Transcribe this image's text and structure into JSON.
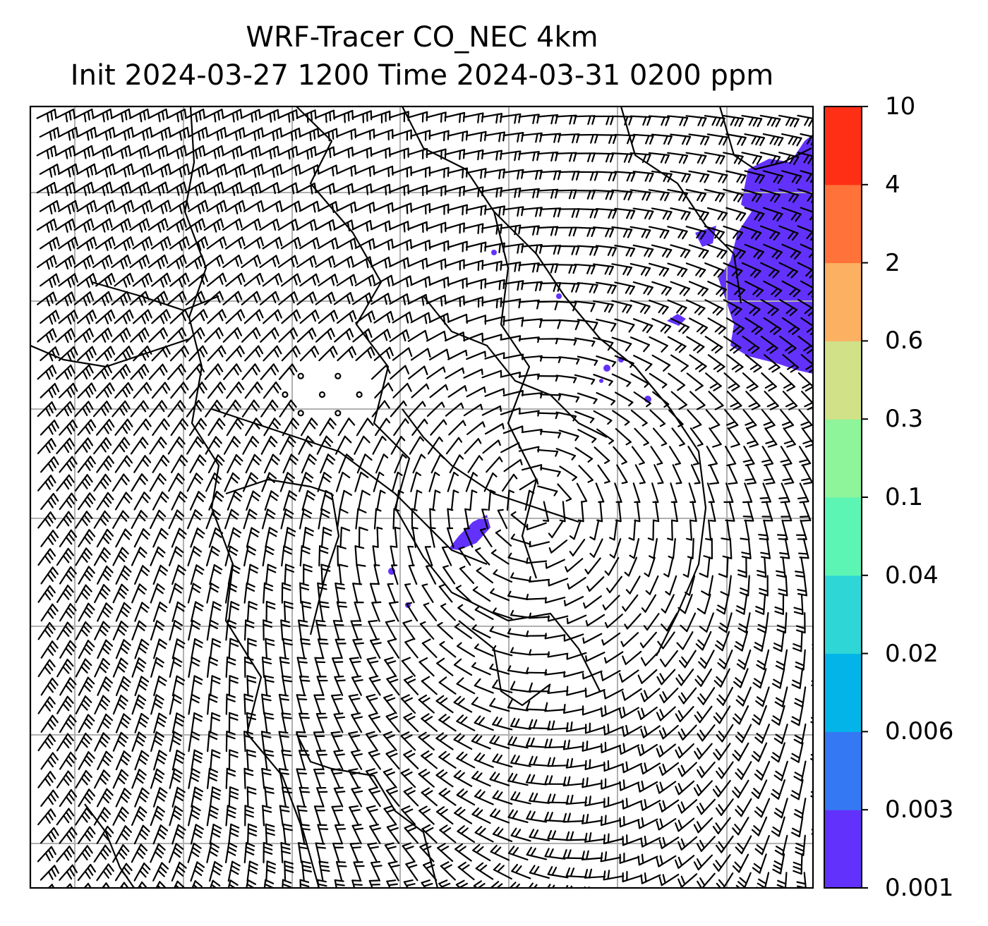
{
  "title": {
    "line1": "WRF-Tracer CO_NEC 4km",
    "line2": "Init 2024-03-27 1200 Time 2024-03-31 0200 ppm"
  },
  "colorbar": {
    "levels": [
      "0.001",
      "0.003",
      "0.006",
      "0.02",
      "0.04",
      "0.1",
      "0.3",
      "0.6",
      "2",
      "4",
      "10"
    ],
    "colors": [
      "#6232fc",
      "#3479f3",
      "#03b4e9",
      "#2ed7d6",
      "#5cf5b4",
      "#8ef59a",
      "#d0e188",
      "#fbb062",
      "#ff7239",
      "#ff2f16"
    ]
  },
  "map": {
    "plume_color": "#6232fc",
    "gridline_color": "#b0b0b0",
    "barb_color": "#000000"
  }
}
